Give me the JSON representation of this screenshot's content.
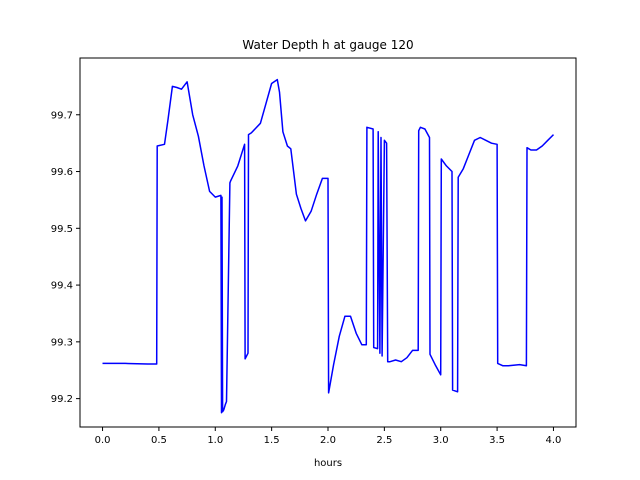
{
  "chart_data": {
    "type": "line",
    "title": "Water Depth h at gauge 120",
    "xlabel": "hours",
    "ylabel": "",
    "xlim": [
      -0.2,
      4.2
    ],
    "ylim": [
      99.15,
      99.8
    ],
    "xticks": [
      0.0,
      0.5,
      1.0,
      1.5,
      2.0,
      2.5,
      3.0,
      3.5,
      4.0
    ],
    "xtick_labels": [
      "0.0",
      "0.5",
      "1.0",
      "1.5",
      "2.0",
      "2.5",
      "3.0",
      "3.5",
      "4.0"
    ],
    "yticks": [
      99.2,
      99.3,
      99.4,
      99.5,
      99.6,
      99.7
    ],
    "ytick_labels": [
      "99.2",
      "99.3",
      "99.4",
      "99.5",
      "99.6",
      "99.7"
    ],
    "grid": false,
    "series": [
      {
        "color": "#0000ff",
        "x": [
          0.0,
          0.2,
          0.4,
          0.48,
          0.485,
          0.55,
          0.58,
          0.62,
          0.66,
          0.7,
          0.75,
          0.8,
          0.85,
          0.9,
          0.95,
          1.0,
          1.05,
          1.055,
          1.06,
          1.065,
          1.075,
          1.09,
          1.1,
          1.13,
          1.135,
          1.2,
          1.26,
          1.265,
          1.29,
          1.295,
          1.32,
          1.4,
          1.45,
          1.5,
          1.55,
          1.57,
          1.6,
          1.64,
          1.67,
          1.72,
          1.76,
          1.8,
          1.85,
          1.9,
          1.95,
          2.0,
          2.005,
          2.05,
          2.1,
          2.15,
          2.2,
          2.25,
          2.3,
          2.34,
          2.345,
          2.4,
          2.405,
          2.44,
          2.445,
          2.46,
          2.47,
          2.48,
          2.5,
          2.52,
          2.53,
          2.55,
          2.6,
          2.65,
          2.7,
          2.75,
          2.8,
          2.805,
          2.82,
          2.86,
          2.9,
          2.905,
          2.95,
          3.0,
          3.005,
          3.05,
          3.1,
          3.105,
          3.15,
          3.155,
          3.2,
          3.25,
          3.3,
          3.35,
          3.4,
          3.45,
          3.5,
          3.505,
          3.55,
          3.6,
          3.7,
          3.76,
          3.765,
          3.8,
          3.85,
          3.9,
          3.95,
          4.0
        ],
        "y": [
          99.262,
          99.262,
          99.261,
          99.261,
          99.645,
          99.648,
          99.69,
          99.75,
          99.748,
          99.745,
          99.758,
          99.7,
          99.662,
          99.61,
          99.565,
          99.555,
          99.558,
          99.175,
          99.555,
          99.177,
          99.18,
          99.19,
          99.195,
          99.58,
          99.583,
          99.61,
          99.648,
          99.27,
          99.28,
          99.665,
          99.668,
          99.685,
          99.72,
          99.755,
          99.762,
          99.74,
          99.67,
          99.645,
          99.64,
          99.56,
          99.535,
          99.513,
          99.53,
          99.56,
          99.588,
          99.588,
          99.21,
          99.26,
          99.31,
          99.345,
          99.345,
          99.315,
          99.295,
          99.295,
          99.678,
          99.675,
          99.29,
          99.288,
          99.67,
          99.28,
          99.66,
          99.275,
          99.655,
          99.65,
          99.265,
          99.265,
          99.268,
          99.265,
          99.272,
          99.285,
          99.285,
          99.672,
          99.678,
          99.675,
          99.66,
          99.278,
          99.26,
          99.242,
          99.622,
          99.61,
          99.6,
          99.215,
          99.212,
          99.59,
          99.605,
          99.63,
          99.655,
          99.66,
          99.655,
          99.65,
          99.648,
          99.262,
          99.258,
          99.258,
          99.26,
          99.258,
          99.642,
          99.638,
          99.638,
          99.645,
          99.655,
          99.665
        ]
      }
    ]
  }
}
